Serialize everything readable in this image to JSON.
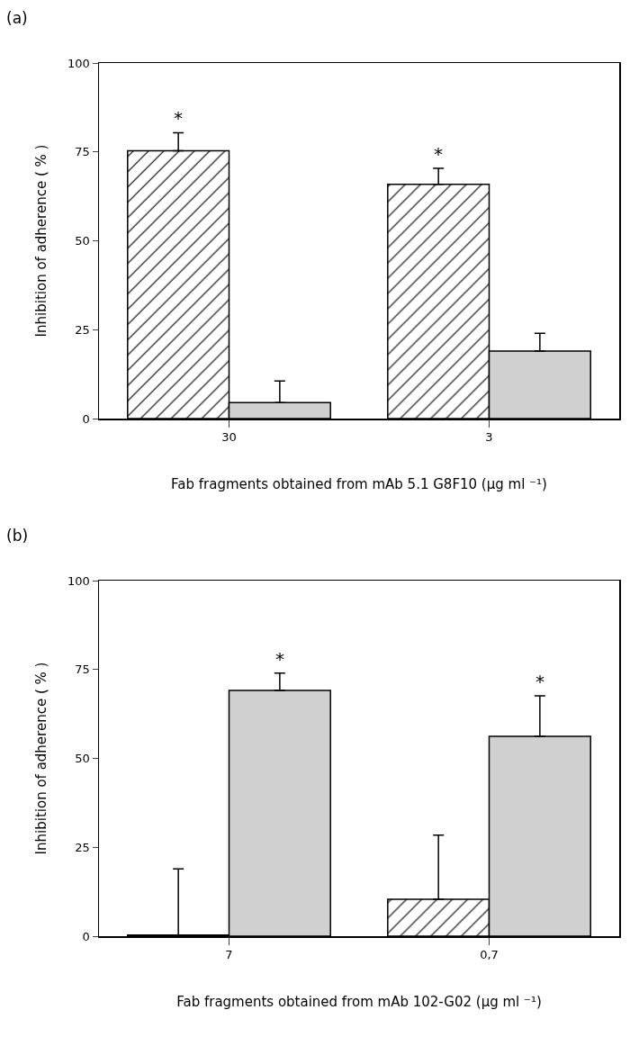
{
  "chart_data": [
    {
      "type": "bar",
      "title": "(a)",
      "xlabel": "Fab fragments obtained from mAb 5.1 G8F10 (µg ml ⁻¹)",
      "ylabel": "Inhibition of adherence ( % )",
      "categories": [
        "30",
        "3"
      ],
      "series": [
        {
          "color": "#000000",
          "values": [
            75.3,
            65.9
          ],
          "errors": [
            [
              75.3,
              80.4
            ],
            [
              65.9,
              70.4
            ]
          ],
          "value_labels": [
            "*",
            "*"
          ]
        },
        {
          "color": "#d0d0d0",
          "values": [
            4.5,
            19.0
          ],
          "errors": [
            [
              4.5,
              10.6
            ],
            [
              19.0,
              24.0
            ]
          ],
          "value_labels": [
            null,
            null
          ]
        }
      ],
      "ylim": [
        0,
        100
      ],
      "yticks": [
        0,
        25,
        50,
        75,
        100
      ]
    },
    {
      "type": "bar",
      "title": "(b)",
      "xlabel": "Fab fragments obtained from mAb 102-G02 (µg ml ⁻¹)",
      "ylabel": "Inhibition of adherence ( % )",
      "categories": [
        "7",
        "0,7"
      ],
      "series": [
        {
          "color": "#000000",
          "values": [
            0.3,
            10.4
          ],
          "errors": [
            [
              0.3,
              18.9
            ],
            [
              10.4,
              28.4
            ]
          ],
          "value_labels": [
            null,
            null
          ]
        },
        {
          "color": "#d0d0d0",
          "values": [
            69.1,
            56.2
          ],
          "errors": [
            [
              69.1,
              74.0
            ],
            [
              56.2,
              67.6
            ]
          ],
          "value_labels": [
            "*",
            "*"
          ]
        }
      ],
      "ylim": [
        0,
        100
      ],
      "yticks": [
        0,
        25,
        50,
        75,
        100
      ]
    }
  ]
}
